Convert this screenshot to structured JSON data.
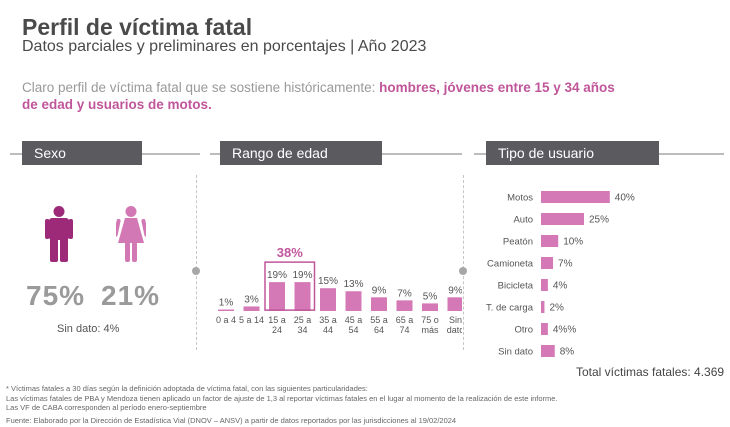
{
  "header": {
    "title": "Perfil de víctima fatal",
    "subtitle": "Datos parciales y preliminares en porcentajes | Año 2023"
  },
  "intro": {
    "normal": "Claro perfil de víctima fatal que se sostiene históricamente: ",
    "highlight": "hombres, jóvenes entre 15 y 34 años de edad y usuarios de motos."
  },
  "sections": {
    "sexo": "Sexo",
    "rango": "Rango de edad",
    "tipo": "Tipo de usuario"
  },
  "sexo": {
    "male_pct": "75%",
    "female_pct": "21%",
    "sin_dato": "Sin dato: 4%",
    "male_color": "#9c2a78",
    "female_color": "#d279b5",
    "male_icon": "male-person-icon",
    "female_icon": "female-person-icon"
  },
  "chart_data": [
    {
      "type": "bar",
      "title": "Rango de edad",
      "categories": [
        "0 a 4",
        "5 a 14",
        "15 a 24",
        "25 a 34",
        "35 a 44",
        "45 a 54",
        "55 a 64",
        "65 a 74",
        "75 o más",
        "Sin dato"
      ],
      "values": [
        1,
        3,
        19,
        19,
        15,
        13,
        9,
        7,
        5,
        9
      ],
      "labels": [
        "1%",
        "3%",
        "19%",
        "19%",
        "15%",
        "13%",
        "9%",
        "7%",
        "5%",
        "9%"
      ],
      "highlight": {
        "categories": [
          "15 a 24",
          "25 a 34"
        ],
        "label": "38%"
      },
      "color": "#d479b6"
    },
    {
      "type": "bar",
      "orientation": "horizontal",
      "title": "Tipo de usuario",
      "categories": [
        "Motos",
        "Auto",
        "Peatón",
        "Camioneta",
        "Bicicleta",
        "T. de carga",
        "Otro",
        "Sin dato"
      ],
      "values": [
        40,
        25,
        10,
        7,
        4,
        2,
        4,
        8
      ],
      "labels": [
        "40%",
        "25%",
        "10%",
        "7%",
        "4%",
        "2%",
        "4%%",
        "8%"
      ],
      "color": "#d479b6"
    }
  ],
  "total": "Total víctimas fatales: 4.369",
  "notes": [
    "* Víctimas fatales a 30 días según la definición adoptada de víctima fatal, con las siguientes particularidades:",
    "Las víctimas fatales de PBA y Mendoza tienen aplicado un factor de ajuste de 1,3 al reportar víctimas fatales en el lugar al momento de la realización de este informe.",
    "Las VF de CABA corresponden al período enero-septiembre"
  ],
  "source": "Fuente: Elaborado por la Dirección de Estadística Vial (DNOV – ANSV) a partir de datos reportados por las jurisdicciones al 19/02/2024"
}
